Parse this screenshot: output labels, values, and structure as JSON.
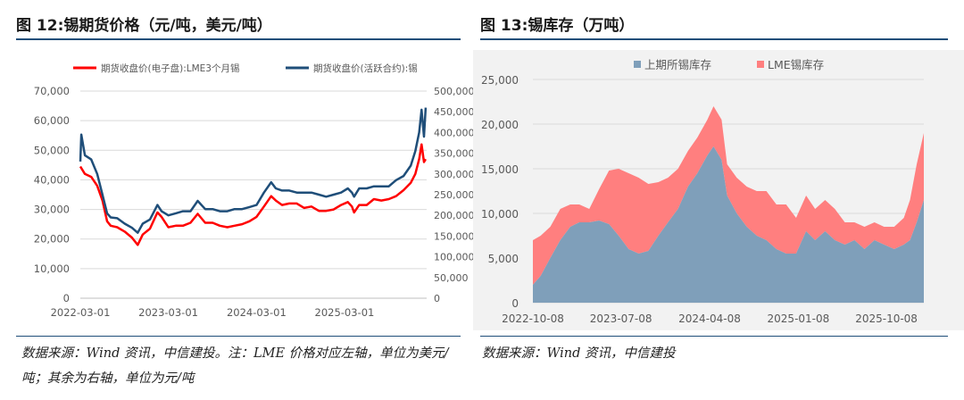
{
  "chart_data": [
    {
      "type": "line",
      "title": "图 12:锡期货价格（元/吨，美元/吨）",
      "series": [
        {
          "name": "期货收盘价(电子盘):LME3个月锡",
          "axis": "left",
          "color": "#ff0000",
          "x": [
            "2022-03-01",
            "2022-03-20",
            "2022-04-15",
            "2022-05-10",
            "2022-06-01",
            "2022-06-20",
            "2022-07-05",
            "2022-08-01",
            "2022-09-01",
            "2022-10-01",
            "2022-10-25",
            "2022-11-15",
            "2022-12-15",
            "2023-01-15",
            "2023-02-01",
            "2023-03-01",
            "2023-04-01",
            "2023-05-01",
            "2023-06-01",
            "2023-07-01",
            "2023-08-01",
            "2023-09-01",
            "2023-10-01",
            "2023-11-01",
            "2023-12-01",
            "2024-01-01",
            "2024-02-01",
            "2024-03-01",
            "2024-04-01",
            "2024-05-01",
            "2024-05-20",
            "2024-06-15",
            "2024-07-15",
            "2024-08-15",
            "2024-09-15",
            "2024-10-15",
            "2024-11-15",
            "2024-12-15",
            "2025-01-15",
            "2025-02-15",
            "2025-03-15",
            "2025-04-01",
            "2025-04-10",
            "2025-05-01",
            "2025-06-01",
            "2025-07-01",
            "2025-08-01",
            "2025-09-01",
            "2025-10-01",
            "2025-11-01",
            "2025-12-01",
            "2025-12-20",
            "2026-01-05",
            "2026-01-15",
            "2026-01-25",
            "2026-02-01"
          ],
          "values": [
            44500,
            42000,
            41000,
            38000,
            33000,
            26000,
            24500,
            24000,
            22500,
            20500,
            18000,
            21500,
            23500,
            29000,
            27500,
            24000,
            24500,
            24500,
            25500,
            28500,
            25500,
            25500,
            24500,
            24000,
            24500,
            25000,
            26000,
            27500,
            31000,
            34500,
            33000,
            31500,
            32000,
            32000,
            30500,
            31000,
            29500,
            29500,
            30000,
            31500,
            32500,
            31000,
            29000,
            31500,
            31500,
            33500,
            33000,
            33500,
            34500,
            36500,
            39000,
            42000,
            47000,
            52000,
            46000,
            47000
          ]
        },
        {
          "name": "期货收盘价(活跃合约):锡",
          "axis": "right",
          "color": "#1f4e79",
          "x": [
            "2022-03-01",
            "2022-03-05",
            "2022-03-20",
            "2022-04-15",
            "2022-05-10",
            "2022-06-01",
            "2022-06-20",
            "2022-07-05",
            "2022-08-01",
            "2022-09-01",
            "2022-10-01",
            "2022-10-25",
            "2022-11-15",
            "2022-12-15",
            "2023-01-15",
            "2023-02-01",
            "2023-03-01",
            "2023-04-01",
            "2023-05-01",
            "2023-06-01",
            "2023-07-01",
            "2023-08-01",
            "2023-09-01",
            "2023-10-01",
            "2023-11-01",
            "2023-12-01",
            "2024-01-01",
            "2024-02-01",
            "2024-03-01",
            "2024-04-01",
            "2024-05-01",
            "2024-05-20",
            "2024-06-15",
            "2024-07-15",
            "2024-08-15",
            "2024-09-15",
            "2024-10-15",
            "2024-11-15",
            "2024-12-15",
            "2025-01-15",
            "2025-02-15",
            "2025-03-15",
            "2025-04-01",
            "2025-04-10",
            "2025-05-01",
            "2025-06-01",
            "2025-07-01",
            "2025-08-01",
            "2025-09-01",
            "2025-10-01",
            "2025-11-01",
            "2025-12-01",
            "2025-12-20",
            "2026-01-05",
            "2026-01-15",
            "2026-01-25",
            "2026-02-01"
          ],
          "values": [
            330000,
            395000,
            345000,
            335000,
            300000,
            250000,
            205000,
            195000,
            193000,
            180000,
            170000,
            158000,
            180000,
            190000,
            225000,
            210000,
            200000,
            205000,
            210000,
            210000,
            235000,
            215000,
            215000,
            210000,
            210000,
            215000,
            215000,
            220000,
            225000,
            255000,
            280000,
            265000,
            260000,
            260000,
            255000,
            255000,
            255000,
            250000,
            245000,
            250000,
            255000,
            265000,
            255000,
            245000,
            265000,
            265000,
            270000,
            270000,
            270000,
            285000,
            295000,
            320000,
            355000,
            400000,
            455000,
            390000,
            460000
          ]
        }
      ],
      "ylim_left": [
        0,
        70000
      ],
      "ylim_right": [
        0,
        500000
      ],
      "yticks_left": [
        "0",
        "10,000",
        "20,000",
        "30,000",
        "40,000",
        "50,000",
        "60,000",
        "70,000"
      ],
      "yticks_right": [
        "0",
        "50,000",
        "100,000",
        "150,000",
        "200,000",
        "250,000",
        "300,000",
        "350,000",
        "400,000",
        "450,000",
        "500,000"
      ],
      "xticks": [
        "2022-03-01",
        "2023-03-01",
        "2024-03-01",
        "2025-03-01"
      ],
      "grid": true,
      "legend": "top"
    },
    {
      "type": "area",
      "title": "图 13:锡库存（万吨）",
      "series": [
        {
          "name": "上期所锡库存",
          "color": "#7f9fba",
          "x": [
            "2022-10-08",
            "2022-11-01",
            "2022-12-01",
            "2023-01-01",
            "2023-02-01",
            "2023-03-01",
            "2023-04-01",
            "2023-05-01",
            "2023-06-01",
            "2023-07-01",
            "2023-08-01",
            "2023-09-01",
            "2023-10-01",
            "2023-11-01",
            "2023-12-01",
            "2024-01-01",
            "2024-02-01",
            "2024-03-01",
            "2024-04-01",
            "2024-04-20",
            "2024-05-15",
            "2024-06-01",
            "2024-07-01",
            "2024-08-01",
            "2024-09-01",
            "2024-10-01",
            "2024-11-01",
            "2024-12-01",
            "2025-01-01",
            "2025-02-01",
            "2025-03-01",
            "2025-04-01",
            "2025-05-01",
            "2025-06-01",
            "2025-07-01",
            "2025-08-01",
            "2025-09-01",
            "2025-10-01",
            "2025-11-01",
            "2025-12-01",
            "2025-12-20",
            "2026-01-10",
            "2026-02-01"
          ],
          "values": [
            2000,
            3000,
            5000,
            7000,
            8500,
            9000,
            9000,
            9200,
            8800,
            7500,
            6000,
            5500,
            5800,
            7500,
            9000,
            10500,
            13000,
            14500,
            16500,
            17500,
            16000,
            12000,
            10000,
            8500,
            7500,
            7000,
            6000,
            5500,
            5500,
            8000,
            7000,
            8000,
            7000,
            6500,
            7000,
            6000,
            7000,
            6500,
            6000,
            6500,
            7000,
            9000,
            11500
          ]
        },
        {
          "name": "LME锡库存",
          "color": "#ff7f7f",
          "x": [
            "2022-10-08",
            "2022-11-01",
            "2022-12-01",
            "2023-01-01",
            "2023-02-01",
            "2023-03-01",
            "2023-04-01",
            "2023-05-01",
            "2023-06-01",
            "2023-07-01",
            "2023-08-01",
            "2023-09-01",
            "2023-10-01",
            "2023-11-01",
            "2023-12-01",
            "2024-01-01",
            "2024-02-01",
            "2024-03-01",
            "2024-04-01",
            "2024-04-20",
            "2024-05-15",
            "2024-06-01",
            "2024-07-01",
            "2024-08-01",
            "2024-09-01",
            "2024-10-01",
            "2024-11-01",
            "2024-12-01",
            "2025-01-01",
            "2025-02-01",
            "2025-03-01",
            "2025-04-01",
            "2025-05-01",
            "2025-06-01",
            "2025-07-01",
            "2025-08-01",
            "2025-09-01",
            "2025-10-01",
            "2025-11-01",
            "2025-12-01",
            "2025-12-20",
            "2026-01-10",
            "2026-02-01"
          ],
          "values": [
            5000,
            4500,
            3500,
            3500,
            2500,
            2000,
            1500,
            3500,
            6000,
            7500,
            8500,
            8500,
            7500,
            6000,
            5000,
            4500,
            4000,
            4000,
            4000,
            4500,
            4500,
            3500,
            4000,
            4500,
            5000,
            5500,
            5000,
            5500,
            4000,
            4000,
            3500,
            3500,
            3500,
            2500,
            2000,
            2500,
            2000,
            2000,
            2500,
            3000,
            4500,
            6500,
            7500
          ]
        }
      ],
      "ylim": [
        0,
        25000
      ],
      "yticks": [
        "0",
        "5,000",
        "10,000",
        "15,000",
        "20,000",
        "25,000"
      ],
      "xticks": [
        "2022-10-08",
        "2023-07-08",
        "2024-04-08",
        "2025-01-08",
        "2025-10-08"
      ],
      "grid": true,
      "legend": "top"
    }
  ],
  "page": {
    "title_left": "图 12:锡期货价格（元/吨，美元/吨）",
    "title_right": "图 13:锡库存（万吨）",
    "note_left": "数据来源：Wind 资讯，中信建投。注：LME 价格对应左轴，单位为美元/吨；其余为右轴，单位为元/吨",
    "note_right": "数据来源：Wind 资讯，中信建投",
    "colors": {
      "rule": "#1f4e79",
      "grid": "#d9d9d9"
    }
  }
}
